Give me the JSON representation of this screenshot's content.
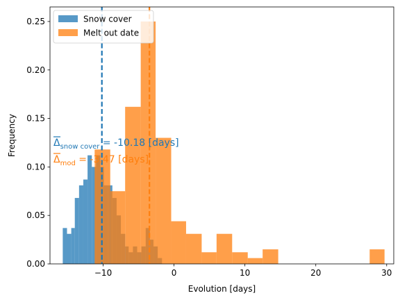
{
  "chart_data": {
    "type": "histogram",
    "title": "",
    "xlabel": "Evolution [days]",
    "ylabel": "Frequency",
    "xlim": [
      -17.5,
      31.0
    ],
    "ylim": [
      0,
      0.265
    ],
    "xticks": [
      -10,
      0,
      10,
      20,
      30
    ],
    "xtick_labels": [
      "−10",
      "0",
      "10",
      "20",
      "30"
    ],
    "yticks": [
      0.0,
      0.05,
      0.1,
      0.15,
      0.2,
      0.25
    ],
    "ytick_labels": [
      "0.00",
      "0.05",
      "0.10",
      "0.15",
      "0.20",
      "0.25"
    ],
    "legend_position": "top-left",
    "series": [
      {
        "name": "Snow cover",
        "color": "#1f77b4",
        "mean": -10.18,
        "bins": [
          {
            "x0": -15.7,
            "x1": -15.1,
            "value": 0.037
          },
          {
            "x0": -15.1,
            "x1": -14.5,
            "value": 0.031
          },
          {
            "x0": -14.5,
            "x1": -14.0,
            "value": 0.037
          },
          {
            "x0": -14.0,
            "x1": -13.4,
            "value": 0.068
          },
          {
            "x0": -13.4,
            "x1": -12.8,
            "value": 0.081
          },
          {
            "x0": -12.8,
            "x1": -12.2,
            "value": 0.087
          },
          {
            "x0": -12.2,
            "x1": -11.6,
            "value": 0.112
          },
          {
            "x0": -11.6,
            "x1": -11.0,
            "value": 0.1
          },
          {
            "x0": -11.0,
            "x1": -10.4,
            "value": 0.112
          },
          {
            "x0": -10.4,
            "x1": -9.9,
            "value": 0.1
          },
          {
            "x0": -9.9,
            "x1": -9.3,
            "value": 0.081
          },
          {
            "x0": -9.3,
            "x1": -8.7,
            "value": 0.081
          },
          {
            "x0": -8.7,
            "x1": -8.1,
            "value": 0.068
          },
          {
            "x0": -8.1,
            "x1": -7.5,
            "value": 0.05
          },
          {
            "x0": -7.5,
            "x1": -6.9,
            "value": 0.031
          },
          {
            "x0": -6.9,
            "x1": -6.4,
            "value": 0.018
          },
          {
            "x0": -6.4,
            "x1": -5.8,
            "value": 0.012
          },
          {
            "x0": -5.8,
            "x1": -5.2,
            "value": 0.018
          },
          {
            "x0": -5.2,
            "x1": -4.6,
            "value": 0.012
          },
          {
            "x0": -4.6,
            "x1": -4.0,
            "value": 0.018
          },
          {
            "x0": -4.0,
            "x1": -3.4,
            "value": 0.037
          },
          {
            "x0": -3.4,
            "x1": -2.9,
            "value": 0.025
          },
          {
            "x0": -2.9,
            "x1": -2.3,
            "value": 0.018
          },
          {
            "x0": -2.3,
            "x1": -1.7,
            "value": 0.006
          }
        ]
      },
      {
        "name": "Melt out date",
        "color": "#ff7f0e",
        "mean": -3.47,
        "bins": [
          {
            "x0": -11.2,
            "x1": -9.0,
            "value": 0.118
          },
          {
            "x0": -9.0,
            "x1": -6.9,
            "value": 0.075
          },
          {
            "x0": -6.9,
            "x1": -4.7,
            "value": 0.162
          },
          {
            "x0": -4.7,
            "x1": -2.6,
            "value": 0.25
          },
          {
            "x0": -2.6,
            "x1": -0.4,
            "value": 0.13
          },
          {
            "x0": -0.4,
            "x1": 1.7,
            "value": 0.044
          },
          {
            "x0": 1.7,
            "x1": 3.9,
            "value": 0.031
          },
          {
            "x0": 3.9,
            "x1": 6.0,
            "value": 0.012
          },
          {
            "x0": 6.0,
            "x1": 8.2,
            "value": 0.031
          },
          {
            "x0": 8.2,
            "x1": 10.4,
            "value": 0.012
          },
          {
            "x0": 10.4,
            "x1": 12.5,
            "value": 0.006
          },
          {
            "x0": 12.5,
            "x1": 14.7,
            "value": 0.015
          },
          {
            "x0": 27.6,
            "x1": 29.7,
            "value": 0.015
          }
        ]
      }
    ],
    "annotations": [
      {
        "base": "Δ",
        "subscript": "snow cover",
        "rest": " = -10.18 [days]",
        "color": "#1f77b4"
      },
      {
        "base": "Δ",
        "subscript": "mod",
        "rest": " = -3.47 [days]",
        "color": "#ff7f0e"
      }
    ]
  }
}
